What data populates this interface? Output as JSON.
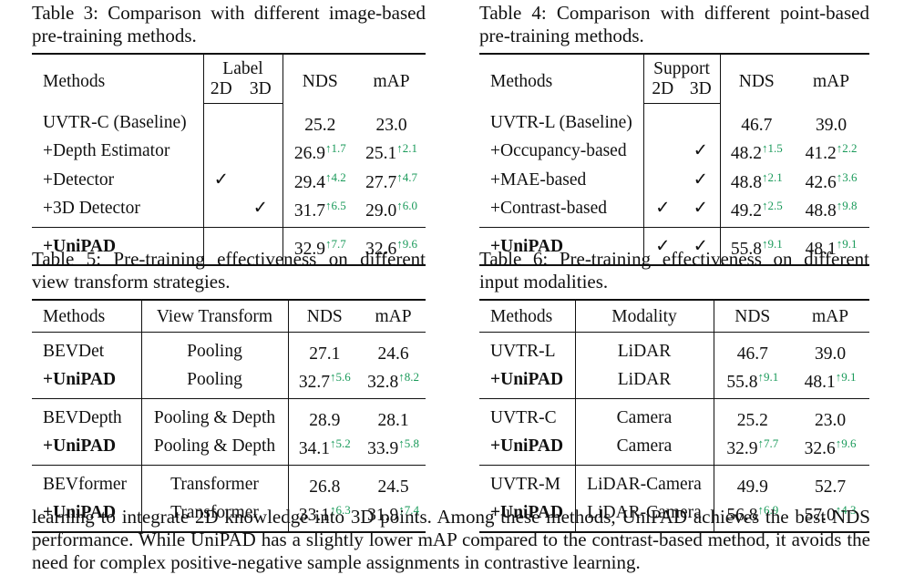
{
  "table3": {
    "caption": "Table 3: Comparison with different image-based pre-training methods.",
    "header": {
      "methods": "Methods",
      "group": "Label",
      "sub1": "2D",
      "sub2": "3D",
      "nds": "NDS",
      "map": "mAP"
    },
    "rows": [
      {
        "method": "UVTR-C (Baseline)",
        "c1": "",
        "c2": "",
        "nds": "25.2",
        "nds_up": "",
        "map": "23.0",
        "map_up": ""
      },
      {
        "method": "+Depth Estimator",
        "c1": "",
        "c2": "",
        "nds": "26.9",
        "nds_up": "↑1.7",
        "map": "25.1",
        "map_up": "↑2.1"
      },
      {
        "method": "+Detector",
        "c1": "✓",
        "c2": "",
        "nds": "29.4",
        "nds_up": "↑4.2",
        "map": "27.7",
        "map_up": "↑4.7"
      },
      {
        "method": "+3D Detector",
        "c1": "",
        "c2": "✓",
        "nds": "31.7",
        "nds_up": "↑6.5",
        "map": "29.0",
        "map_up": "↑6.0"
      }
    ],
    "final": {
      "method": "+UniPAD",
      "c1": "",
      "c2": "",
      "nds": "32.9",
      "nds_up": "↑7.7",
      "map": "32.6",
      "map_up": "↑9.6"
    }
  },
  "table4": {
    "caption": "Table 4: Comparison with different point-based pre-training methods.",
    "header": {
      "methods": "Methods",
      "group": "Support",
      "sub1": "2D",
      "sub2": "3D",
      "nds": "NDS",
      "map": "mAP"
    },
    "rows": [
      {
        "method": "UVTR-L (Baseline)",
        "c1": "",
        "c2": "",
        "nds": "46.7",
        "nds_up": "",
        "map": "39.0",
        "map_up": ""
      },
      {
        "method": "+Occupancy-based",
        "c1": "",
        "c2": "✓",
        "nds": "48.2",
        "nds_up": "↑1.5",
        "map": "41.2",
        "map_up": "↑2.2"
      },
      {
        "method": "+MAE-based",
        "c1": "",
        "c2": "✓",
        "nds": "48.8",
        "nds_up": "↑2.1",
        "map": "42.6",
        "map_up": "↑3.6"
      },
      {
        "method": "+Contrast-based",
        "c1": "✓",
        "c2": "✓",
        "nds": "49.2",
        "nds_up": "↑2.5",
        "map": "48.8",
        "map_up": "↑9.8"
      }
    ],
    "final": {
      "method": "+UniPAD",
      "c1": "✓",
      "c2": "✓",
      "nds": "55.8",
      "nds_up": "↑9.1",
      "map": "48.1",
      "map_up": "↑9.1"
    }
  },
  "table5": {
    "caption": "Table 5: Pre-training effectiveness on different view transform strategies.",
    "header": {
      "methods": "Methods",
      "mid": "View Transform",
      "nds": "NDS",
      "map": "mAP"
    },
    "groups": [
      [
        {
          "method": "BEVDet",
          "mid": "Pooling",
          "nds": "27.1",
          "nds_up": "",
          "map": "24.6",
          "map_up": ""
        },
        {
          "method": "+UniPAD",
          "mid": "Pooling",
          "nds": "32.7",
          "nds_up": "↑5.6",
          "map": "32.8",
          "map_up": "↑8.2"
        }
      ],
      [
        {
          "method": "BEVDepth",
          "mid": "Pooling & Depth",
          "nds": "28.9",
          "nds_up": "",
          "map": "28.1",
          "map_up": ""
        },
        {
          "method": "+UniPAD",
          "mid": "Pooling & Depth",
          "nds": "34.1",
          "nds_up": "↑5.2",
          "map": "33.9",
          "map_up": "↑5.8"
        }
      ],
      [
        {
          "method": "BEVformer",
          "mid": "Transformer",
          "nds": "26.8",
          "nds_up": "",
          "map": "24.5",
          "map_up": ""
        },
        {
          "method": "+UniPAD",
          "mid": "Transformer",
          "nds": "33.1",
          "nds_up": "↑6.3",
          "map": "31.9",
          "map_up": "↑7.4"
        }
      ]
    ]
  },
  "table6": {
    "caption": "Table 6: Pre-training effectiveness on different input modalities.",
    "header": {
      "methods": "Methods",
      "mid": "Modality",
      "nds": "NDS",
      "map": "mAP"
    },
    "groups": [
      [
        {
          "method": "UVTR-L",
          "mid": "LiDAR",
          "nds": "46.7",
          "nds_up": "",
          "map": "39.0",
          "map_up": ""
        },
        {
          "method": "+UniPAD",
          "mid": "LiDAR",
          "nds": "55.8",
          "nds_up": "↑9.1",
          "map": "48.1",
          "map_up": "↑9.1"
        }
      ],
      [
        {
          "method": "UVTR-C",
          "mid": "Camera",
          "nds": "25.2",
          "nds_up": "",
          "map": "23.0",
          "map_up": ""
        },
        {
          "method": "+UniPAD",
          "mid": "Camera",
          "nds": "32.9",
          "nds_up": "↑7.7",
          "map": "32.6",
          "map_up": "↑9.6"
        }
      ],
      [
        {
          "method": "UVTR-M",
          "mid": "LiDAR-Camera",
          "nds": "49.9",
          "nds_up": "",
          "map": "52.7",
          "map_up": ""
        },
        {
          "method": "+UniPAD",
          "mid": "LiDAR-Camera",
          "nds": "56.8",
          "nds_up": "↑6.9",
          "map": "57.0",
          "map_up": "↑4.3"
        }
      ]
    ]
  },
  "paragraph": "learning to integrate 2D knowledge into 3D points. Among these methods, UniPAD achieves the best NDS performance. While UniPAD has a slightly lower mAP compared to the contrast-based method, it avoids the need for complex positive-negative sample assignments in contrastive learning.",
  "colors": {
    "improvement": "#1a9a5a",
    "rule": "#111111"
  }
}
